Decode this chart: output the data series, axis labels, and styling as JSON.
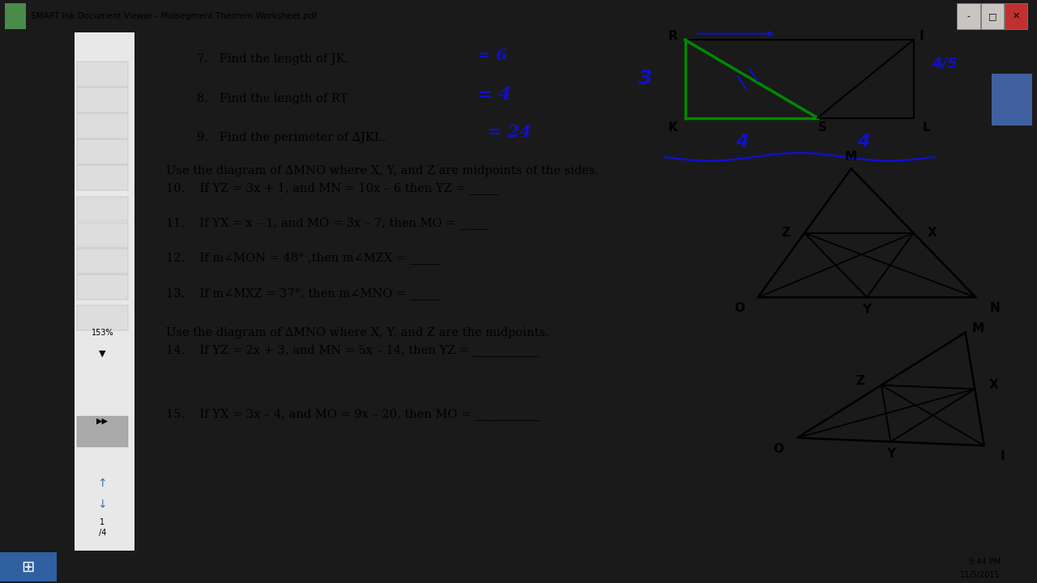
{
  "title": "SMART Ink Document Viewer - Midsegment Theorem Worksheet.pdf",
  "bg_outer": "#1a1a1a",
  "bg_toolbar": "#2a2a2a",
  "paper_color": "#ffffff",
  "sidebar_color": "#e8e8e8",
  "title_bar_color": "#d0cdc8",
  "taskbar_color": "#c8c5c0",
  "text_color": "#000000",
  "blue_ink": "#1010cc",
  "green_ink": "#007700",
  "q7": "7.   Find the length of JK.",
  "q8": "8.   Find the length of RT",
  "q9": "9.   Find the perimeter of ∆JKL.",
  "ans7": "= 6",
  "ans8": "= 4",
  "ans9": "= 24",
  "section2_header": "Use the diagram of ∆MNO where X, Y, and Z are midpoints of the sides.",
  "q10": "10.    If YZ = 3x + 1, and MN = 10x – 6 then YZ =",
  "q11": "11.    If YX = x – 1, and MO = 3x – 7, then MO =",
  "q12": "12.    If m∠MON = 48° ,then m∠MZX =",
  "q13": "13.    If m∠MXZ = 37°, then m∠MNO =",
  "section3_header": "Use the diagram of ∆MNO where X, Y, and Z are the midpoints.",
  "q14": "14.    If YZ = 2x + 3, and MN = 5x – 14, then YZ =",
  "q15": "15.    If YX = 3x – 4, and MO = 9x – 20, then MO ="
}
